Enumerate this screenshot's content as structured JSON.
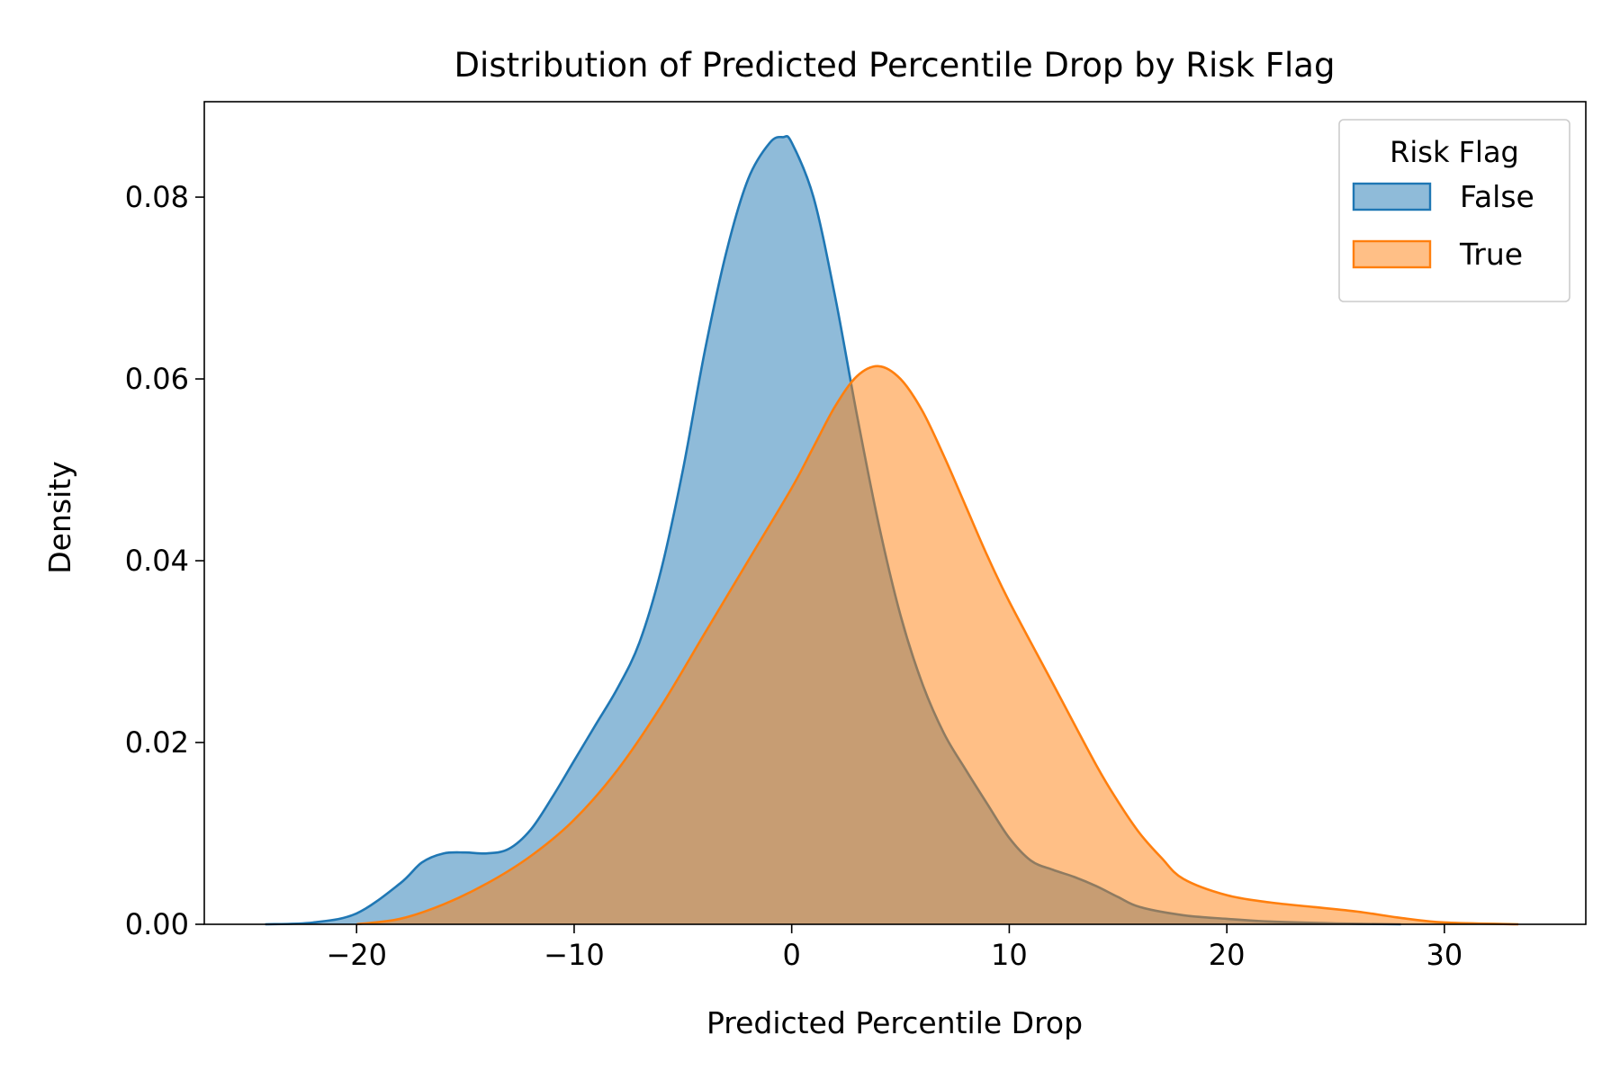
{
  "chart_data": {
    "type": "area",
    "title": "Distribution of Predicted Percentile Drop by Risk Flag",
    "xlabel": "Predicted Percentile Drop",
    "ylabel": "Density",
    "xlim": [
      -27,
      36.5
    ],
    "ylim": [
      0,
      0.0905
    ],
    "xticks": [
      -20,
      -10,
      0,
      10,
      20,
      30
    ],
    "xtick_labels": [
      "−20",
      "−10",
      "0",
      "10",
      "20",
      "30"
    ],
    "yticks": [
      0.0,
      0.02,
      0.04,
      0.06,
      0.08
    ],
    "ytick_labels": [
      "0.00",
      "0.02",
      "0.04",
      "0.06",
      "0.08"
    ],
    "grid": false,
    "legend": {
      "title": "Risk Flag",
      "placement": "top-right"
    },
    "series": [
      {
        "name": "False",
        "color": "#1f77b4",
        "fill_opacity": 0.5,
        "points": [
          [
            -24.2,
            0.0
          ],
          [
            -22,
            0.0002
          ],
          [
            -20,
            0.0012
          ],
          [
            -18,
            0.0045
          ],
          [
            -17,
            0.0068
          ],
          [
            -16,
            0.0078
          ],
          [
            -15,
            0.0079
          ],
          [
            -14,
            0.0078
          ],
          [
            -13,
            0.0083
          ],
          [
            -12,
            0.0104
          ],
          [
            -11,
            0.014
          ],
          [
            -10,
            0.018
          ],
          [
            -9,
            0.022
          ],
          [
            -8,
            0.026
          ],
          [
            -7,
            0.031
          ],
          [
            -6,
            0.039
          ],
          [
            -5,
            0.05
          ],
          [
            -4,
            0.063
          ],
          [
            -3,
            0.074
          ],
          [
            -2,
            0.082
          ],
          [
            -1,
            0.086
          ],
          [
            -0.4,
            0.0866
          ],
          [
            0,
            0.086
          ],
          [
            1,
            0.08
          ],
          [
            2,
            0.069
          ],
          [
            3,
            0.056
          ],
          [
            4,
            0.044
          ],
          [
            5,
            0.034
          ],
          [
            6,
            0.0265
          ],
          [
            7,
            0.021
          ],
          [
            8,
            0.017
          ],
          [
            9,
            0.0132
          ],
          [
            10,
            0.0095
          ],
          [
            11,
            0.007
          ],
          [
            12,
            0.006
          ],
          [
            13,
            0.0052
          ],
          [
            14,
            0.0042
          ],
          [
            15,
            0.003
          ],
          [
            16,
            0.0019
          ],
          [
            18,
            0.001
          ],
          [
            20,
            0.0006
          ],
          [
            22,
            0.0003
          ],
          [
            25,
            0.0001
          ],
          [
            28,
            0.0
          ]
        ]
      },
      {
        "name": "True",
        "color": "#ff7f0e",
        "fill_opacity": 0.5,
        "points": [
          [
            -20,
            0.0
          ],
          [
            -18,
            0.0006
          ],
          [
            -16,
            0.0022
          ],
          [
            -14,
            0.0045
          ],
          [
            -12,
            0.0075
          ],
          [
            -10,
            0.0115
          ],
          [
            -8,
            0.017
          ],
          [
            -6,
            0.024
          ],
          [
            -4,
            0.032
          ],
          [
            -2,
            0.04
          ],
          [
            0,
            0.048
          ],
          [
            1,
            0.0525
          ],
          [
            2,
            0.057
          ],
          [
            3,
            0.0603
          ],
          [
            4,
            0.0614
          ],
          [
            5,
            0.06
          ],
          [
            6,
            0.0565
          ],
          [
            7,
            0.0515
          ],
          [
            8,
            0.046
          ],
          [
            9,
            0.0405
          ],
          [
            10,
            0.0355
          ],
          [
            12,
            0.0265
          ],
          [
            14,
            0.0175
          ],
          [
            15,
            0.0135
          ],
          [
            16,
            0.01
          ],
          [
            17,
            0.0073
          ],
          [
            18,
            0.005
          ],
          [
            20,
            0.0032
          ],
          [
            22,
            0.0024
          ],
          [
            24,
            0.0019
          ],
          [
            26,
            0.0014
          ],
          [
            28,
            0.0007
          ],
          [
            30,
            0.0002
          ],
          [
            33.4,
            0.0
          ]
        ]
      }
    ]
  }
}
